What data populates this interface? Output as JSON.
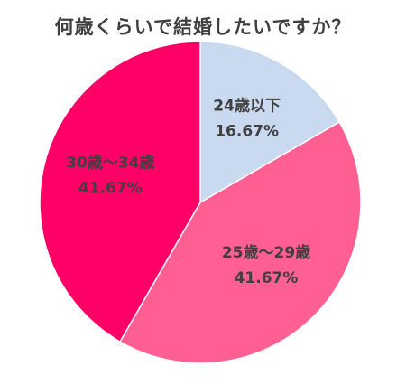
{
  "chart_data": {
    "type": "pie",
    "title": "何歳くらいで結婚したいですか？",
    "categories": [
      "24歳以下",
      "25歳～29歳",
      "30歳～34歳"
    ],
    "values": [
      16.67,
      41.67,
      41.67
    ],
    "value_labels": [
      "16.67%",
      "41.67%",
      "41.67%"
    ],
    "colors": [
      "#c9d9f0",
      "#ff5f93",
      "#ff0066"
    ],
    "start": "12 o'clock",
    "direction": "clockwise",
    "legend": "none, labels on slices"
  }
}
